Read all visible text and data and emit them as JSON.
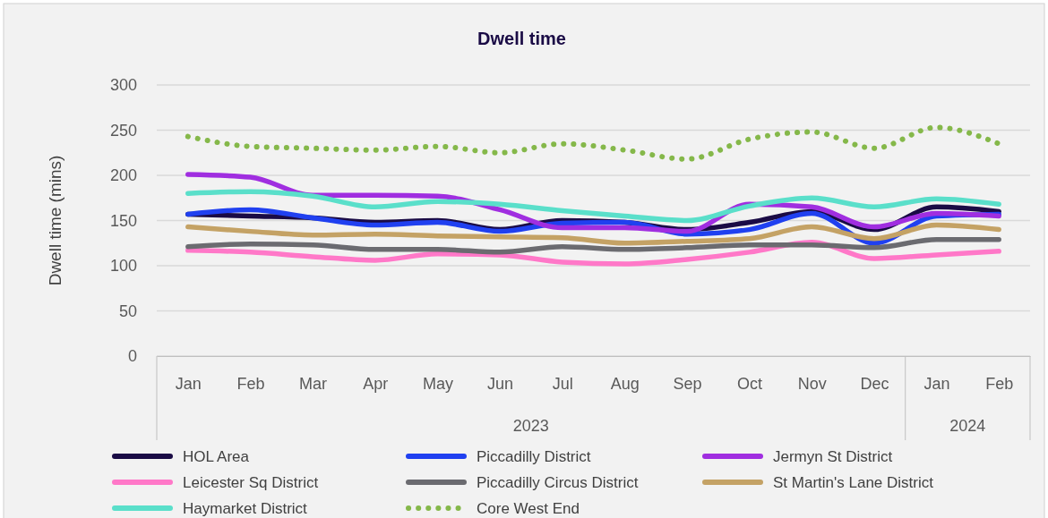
{
  "chart_data": {
    "type": "line",
    "title": "Dwell time",
    "ylabel": "Dwell time (mins)",
    "categories": [
      "Jan",
      "Feb",
      "Mar",
      "Apr",
      "May",
      "Jun",
      "Jul",
      "Aug",
      "Sep",
      "Oct",
      "Nov",
      "Dec",
      "Jan",
      "Feb"
    ],
    "annotations": [
      "2023",
      "2024"
    ],
    "ylim": [
      0,
      300
    ],
    "yticks": [
      0,
      50,
      100,
      150,
      200,
      250,
      300
    ],
    "grid": "y",
    "legend": "bottom",
    "line_style": "solid",
    "marker": "none",
    "series": [
      {
        "name": "HOL Area",
        "color": "#1a0b45",
        "values": [
          157,
          155,
          153,
          148,
          150,
          140,
          150,
          148,
          140,
          148,
          160,
          140,
          165,
          160
        ]
      },
      {
        "name": "Piccadilly District",
        "color": "#2040f0",
        "values": [
          157,
          162,
          153,
          145,
          148,
          138,
          147,
          148,
          135,
          140,
          158,
          125,
          155,
          157
        ]
      },
      {
        "name": "Jermyn St District",
        "color": "#a02ee0",
        "values": [
          201,
          198,
          178,
          178,
          177,
          162,
          142,
          142,
          138,
          168,
          165,
          143,
          158,
          155
        ]
      },
      {
        "name": "Leicester Sq District",
        "color": "#ff78c8",
        "values": [
          117,
          115,
          110,
          106,
          113,
          112,
          104,
          102,
          107,
          115,
          126,
          108,
          112,
          116
        ]
      },
      {
        "name": "Piccadilly Circus District",
        "color": "#6b6b70",
        "values": [
          121,
          124,
          123,
          118,
          118,
          115,
          121,
          118,
          120,
          123,
          123,
          120,
          129,
          129
        ]
      },
      {
        "name": "St Martin's Lane District",
        "color": "#c4a265",
        "values": [
          143,
          138,
          134,
          135,
          133,
          132,
          131,
          125,
          127,
          130,
          143,
          130,
          145,
          140
        ]
      },
      {
        "name": "Haymarket District",
        "color": "#5adfca",
        "values": [
          180,
          182,
          177,
          165,
          171,
          168,
          161,
          155,
          150,
          166,
          175,
          165,
          174,
          168
        ]
      },
      {
        "name": "Core West End",
        "color": "#85b84a",
        "line_style": "dotted",
        "values": [
          243,
          232,
          230,
          228,
          232,
          225,
          235,
          228,
          218,
          240,
          248,
          230,
          253,
          235
        ]
      }
    ]
  }
}
